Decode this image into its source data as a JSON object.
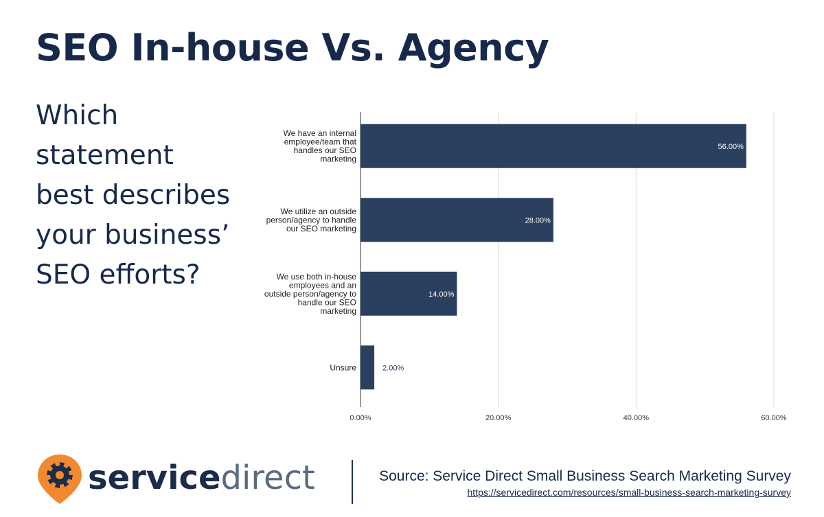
{
  "page": {
    "title": "SEO In-house Vs. Agency",
    "question_lines": [
      "Which",
      "statement",
      "best describes",
      "your business’",
      "SEO efforts?"
    ]
  },
  "chart_data": {
    "type": "bar",
    "orientation": "horizontal",
    "categories": [
      [
        "We have an internal",
        "employee/team that",
        "handles our SEO",
        "marketing"
      ],
      [
        "We utilize an outside",
        "person/agency to handle",
        "our SEO marketing"
      ],
      [
        "We use both in-house",
        "employees and an",
        "outside person/agency to",
        "handle our SEO",
        "marketing"
      ],
      [
        "Unsure"
      ]
    ],
    "values": [
      56,
      28,
      14,
      2
    ],
    "data_labels": [
      "56.00%",
      "28.00%",
      "14.00%",
      "2.00%"
    ],
    "xlim": [
      0,
      60
    ],
    "xticks": [
      0,
      20,
      40,
      60
    ],
    "xtick_labels": [
      "0.00%",
      "20.00%",
      "40.00%",
      "60.00%"
    ],
    "grid": true,
    "bar_color": "#2b3f5e",
    "label_inside_color": "#ffffff",
    "label_outside_color": "#2b3f5e"
  },
  "footer": {
    "logo_bold": "service",
    "logo_light": "direct",
    "logo_icon": "gear-pin-icon",
    "logo_color": "#f0892f",
    "source_text": "Source: Service Direct Small Business Search Marketing Survey",
    "source_url": "https://servicedirect.com/resources/small-business-search-marketing-survey"
  }
}
